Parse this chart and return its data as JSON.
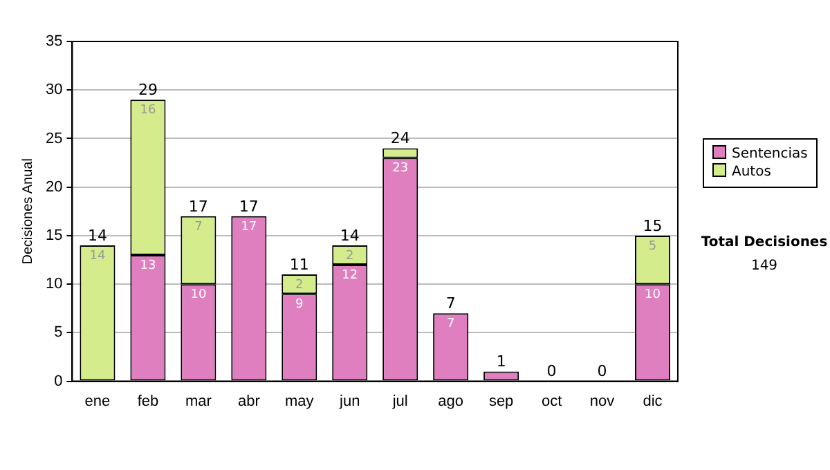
{
  "chart_data": {
    "type": "bar",
    "stacked": true,
    "ylabel": "Decisiones Anual",
    "categories": [
      "ene",
      "feb",
      "mar",
      "abr",
      "may",
      "jun",
      "jul",
      "ago",
      "sep",
      "oct",
      "nov",
      "dic"
    ],
    "series": [
      {
        "name": "Sentencias",
        "color": "#e07fc0",
        "values": [
          0,
          13,
          10,
          17,
          9,
          12,
          23,
          7,
          1,
          0,
          0,
          10
        ],
        "value_labels": [
          null,
          "13",
          "10",
          "17",
          "9",
          "12",
          "23",
          "7",
          null,
          null,
          null,
          "10"
        ]
      },
      {
        "name": "Autos",
        "color": "#d4ec8c",
        "values": [
          14,
          16,
          7,
          0,
          2,
          2,
          1,
          0,
          0,
          0,
          0,
          5
        ],
        "value_labels": [
          "14",
          "16",
          "7",
          null,
          "2",
          "2",
          null,
          null,
          null,
          null,
          null,
          "5"
        ]
      }
    ],
    "totals": [
      "14",
      "29",
      "17",
      "17",
      "11",
      "14",
      "24",
      "7",
      "1",
      "0",
      "0",
      "15"
    ],
    "ylim": [
      0,
      35
    ],
    "yticks": [
      0,
      5,
      10,
      15,
      20,
      25,
      30,
      35
    ],
    "grid": "y",
    "legend": "right",
    "annotations": [
      "Total Decisiones",
      "149"
    ]
  }
}
